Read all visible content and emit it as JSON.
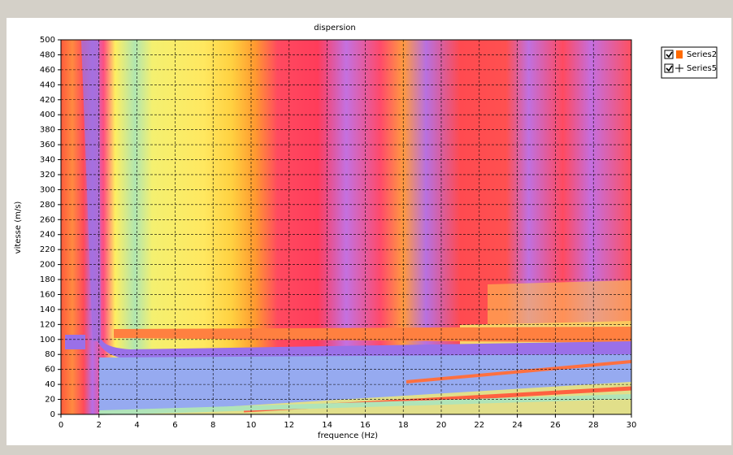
{
  "chart_data": {
    "type": "heatmap",
    "title": "dispersion",
    "xlabel": "frequence (Hz)",
    "ylabel": "vitesse (m/s)",
    "xlim": [
      0,
      30
    ],
    "ylim": [
      0,
      500
    ],
    "xticks": [
      0,
      2,
      4,
      6,
      8,
      10,
      12,
      14,
      16,
      18,
      20,
      22,
      24,
      26,
      28,
      30
    ],
    "yticks": [
      0,
      20,
      40,
      60,
      80,
      100,
      120,
      140,
      160,
      180,
      200,
      220,
      240,
      260,
      280,
      300,
      320,
      340,
      360,
      380,
      400,
      420,
      440,
      460,
      480,
      500
    ],
    "grid": true,
    "legend_position": "right",
    "legend": [
      {
        "name": "Series2",
        "marker": "square",
        "color": "#ff6a00"
      },
      {
        "name": "Series5",
        "marker": "plus",
        "color": "#000000"
      }
    ]
  }
}
